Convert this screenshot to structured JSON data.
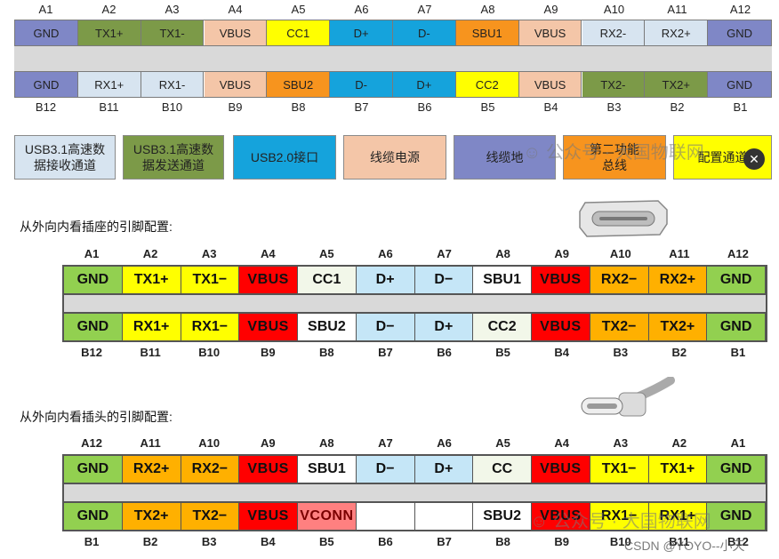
{
  "colors": {
    "usb31_rx": "#d7e4f0",
    "usb31_tx": "#7c9a48",
    "usb20": "#15a3dc",
    "vbus_power": "#f4c6a8",
    "ground": "#7f87c6",
    "sbu": "#f7941e",
    "cc": "#ffff00",
    "plain_white": "#ffffff",
    "b_gnd": "#92d050",
    "b_yellow": "#ffff00",
    "b_red": "#ff0000",
    "b_cc": "#f2f7e9",
    "b_dlight": "#c5e6f7",
    "b_orange": "#ffb000",
    "b_vconn": "#ff8080",
    "b_gray": "#d9d9d9"
  },
  "top_diagram": {
    "top_labels": [
      "A1",
      "A2",
      "A3",
      "A4",
      "A5",
      "A6",
      "A7",
      "A8",
      "A9",
      "A10",
      "A11",
      "A12"
    ],
    "top_pins": [
      "GND",
      "TX1+",
      "TX1-",
      "VBUS",
      "CC1",
      "D+",
      "D-",
      "SBU1",
      "VBUS",
      "RX2-",
      "RX2+",
      "GND"
    ],
    "bottom_pins": [
      "GND",
      "RX1+",
      "RX1-",
      "VBUS",
      "SBU2",
      "D-",
      "D+",
      "CC2",
      "VBUS",
      "TX2-",
      "TX2+",
      "GND"
    ],
    "bottom_labels": [
      "B12",
      "B11",
      "B10",
      "B9",
      "B8",
      "B7",
      "B6",
      "B5",
      "B4",
      "B3",
      "B2",
      "B1"
    ]
  },
  "legend": [
    {
      "text_line1": "USB3.1高速数",
      "text_line2": "据接收通道",
      "color": "usb31_rx"
    },
    {
      "text_line1": "USB3.1高速数",
      "text_line2": "据发送通道",
      "color": "usb31_tx"
    },
    {
      "text_line1": "USB2.0接口",
      "text_line2": "",
      "color": "usb20"
    },
    {
      "text_line1": "线缆电源",
      "text_line2": "",
      "color": "vbus_power"
    },
    {
      "text_line1": "线缆地",
      "text_line2": "",
      "color": "ground"
    },
    {
      "text_line1": "第二功能",
      "text_line2": "总线",
      "color": "sbu"
    },
    {
      "text_line1": "配置通道",
      "text_line2": "",
      "color": "cc"
    }
  ],
  "receptacle": {
    "heading": "从外向内看插座的引脚配置:",
    "top_labels": [
      "A1",
      "A2",
      "A3",
      "A4",
      "A5",
      "A6",
      "A7",
      "A8",
      "A9",
      "A10",
      "A11",
      "A12"
    ],
    "top_pins": [
      "GND",
      "TX1+",
      "TX1−",
      "VBUS",
      "CC1",
      "D+",
      "D−",
      "SBU1",
      "VBUS",
      "RX2−",
      "RX2+",
      "GND"
    ],
    "bottom_pins": [
      "GND",
      "RX1+",
      "RX1−",
      "VBUS",
      "SBU2",
      "D−",
      "D+",
      "CC2",
      "VBUS",
      "TX2−",
      "TX2+",
      "GND"
    ],
    "bottom_labels": [
      "B12",
      "B11",
      "B10",
      "B9",
      "B8",
      "B7",
      "B6",
      "B5",
      "B4",
      "B3",
      "B2",
      "B1"
    ]
  },
  "plug": {
    "heading": "从外向内看插头的引脚配置:",
    "top_labels": [
      "A12",
      "A11",
      "A10",
      "A9",
      "A8",
      "A7",
      "A6",
      "A5",
      "A4",
      "A3",
      "A2",
      "A1"
    ],
    "top_pins": [
      "GND",
      "RX2+",
      "RX2−",
      "VBUS",
      "SBU1",
      "D−",
      "D+",
      "CC",
      "VBUS",
      "TX1−",
      "TX1+",
      "GND"
    ],
    "bottom_pins": [
      "GND",
      "TX2+",
      "TX2−",
      "VBUS",
      "VCONN",
      "",
      "",
      "SBU2",
      "VBUS",
      "RX1−",
      "RX1+",
      "GND"
    ],
    "bottom_labels": [
      "B1",
      "B2",
      "B3",
      "B4",
      "B5",
      "B6",
      "B7",
      "B8",
      "B9",
      "B10",
      "B11",
      "B12"
    ]
  },
  "watermarks": {
    "top": "公众号 · 大国物联网",
    "bottom": "公众号 · 大国物联网",
    "csdn": "CSDN @YOYO--小天"
  }
}
